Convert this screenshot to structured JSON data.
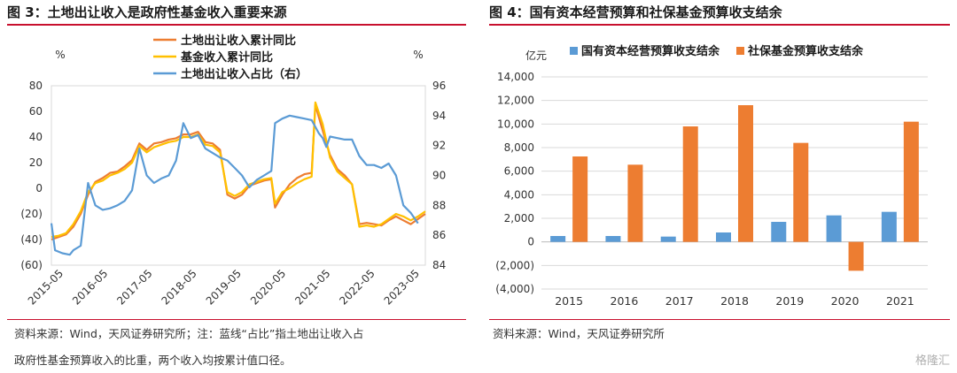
{
  "figures": [
    {
      "title": "图 3：土地出让收入是政府性基金收入重要来源",
      "source": [
        "资料来源：Wind，天风证券研究所；注：蓝线“占比”指土地出让收入占",
        "政府性基金预算收入的比重，两个收入均按累计值口径。"
      ]
    },
    {
      "title": "图 4：国有资本经营预算和社保基金预算收支结余",
      "source": [
        "资料来源：Wind，天风证券研究所"
      ]
    }
  ],
  "watermark": "格隆汇",
  "chart_data": [
    {
      "type": "line",
      "unit_left": "%",
      "unit_right": "%",
      "ylim": [
        -60,
        80
      ],
      "y2lim": [
        84,
        96
      ],
      "yticks": [
        "80",
        "60",
        "40",
        "20",
        "0",
        "(20)",
        "(40)",
        "(60)"
      ],
      "y2ticks": [
        "96",
        "94",
        "92",
        "90",
        "88",
        "86",
        "84"
      ],
      "x_ticks": [
        "2015-05",
        "2016-05",
        "2017-05",
        "2018-05",
        "2019-05",
        "2020-05",
        "2021-05",
        "2022-05",
        "2023-05"
      ],
      "legend": [
        "土地出让收入累计同比",
        "基金收入累计同比",
        "土地出让收入占比（右）"
      ],
      "colors": [
        "#ed7d31",
        "#ffc000",
        "#5b9bd5"
      ],
      "series": [
        {
          "name": "土地出让收入累计同比",
          "axis": "left",
          "points": [
            [
              0,
              -40
            ],
            [
              2,
              -38
            ],
            [
              4,
              -36
            ],
            [
              6,
              -30
            ],
            [
              8,
              -20
            ],
            [
              10,
              -5
            ],
            [
              12,
              5
            ],
            [
              14,
              8
            ],
            [
              16,
              12
            ],
            [
              18,
              13
            ],
            [
              20,
              17
            ],
            [
              22,
              22
            ],
            [
              24,
              35
            ],
            [
              26,
              30
            ],
            [
              28,
              35
            ],
            [
              30,
              36
            ],
            [
              32,
              38
            ],
            [
              34,
              39
            ],
            [
              36,
              42
            ],
            [
              38,
              42
            ],
            [
              40,
              44
            ],
            [
              42,
              36
            ],
            [
              44,
              35
            ],
            [
              46,
              30
            ],
            [
              48,
              -5
            ],
            [
              50,
              -8
            ],
            [
              52,
              -5
            ],
            [
              54,
              2
            ],
            [
              56,
              4
            ],
            [
              58,
              6
            ],
            [
              60,
              7
            ],
            [
              61,
              -15
            ],
            [
              63,
              -5
            ],
            [
              65,
              3
            ],
            [
              67,
              8
            ],
            [
              69,
              11
            ],
            [
              71,
              12
            ],
            [
              72,
              65
            ],
            [
              74,
              45
            ],
            [
              76,
              26
            ],
            [
              78,
              15
            ],
            [
              80,
              10
            ],
            [
              82,
              3
            ],
            [
              84,
              -28
            ],
            [
              86,
              -27
            ],
            [
              88,
              -28
            ],
            [
              90,
              -29
            ],
            [
              92,
              -25
            ],
            [
              94,
              -22
            ],
            [
              96,
              -25
            ],
            [
              98,
              -28
            ],
            [
              100,
              -24
            ],
            [
              102,
              -20
            ]
          ]
        },
        {
          "name": "基金收入累计同比",
          "axis": "left",
          "points": [
            [
              0,
              -38
            ],
            [
              2,
              -37
            ],
            [
              4,
              -35
            ],
            [
              6,
              -28
            ],
            [
              8,
              -18
            ],
            [
              10,
              -3
            ],
            [
              12,
              4
            ],
            [
              14,
              6
            ],
            [
              16,
              10
            ],
            [
              18,
              12
            ],
            [
              20,
              15
            ],
            [
              22,
              20
            ],
            [
              24,
              33
            ],
            [
              26,
              28
            ],
            [
              28,
              32
            ],
            [
              30,
              34
            ],
            [
              32,
              36
            ],
            [
              34,
              37
            ],
            [
              36,
              40
            ],
            [
              38,
              40
            ],
            [
              40,
              42
            ],
            [
              42,
              34
            ],
            [
              44,
              33
            ],
            [
              46,
              28
            ],
            [
              48,
              -3
            ],
            [
              50,
              -6
            ],
            [
              52,
              -3
            ],
            [
              54,
              3
            ],
            [
              56,
              5
            ],
            [
              58,
              7
            ],
            [
              60,
              8
            ],
            [
              61,
              -12
            ],
            [
              63,
              -3
            ],
            [
              65,
              0
            ],
            [
              67,
              4
            ],
            [
              69,
              7
            ],
            [
              71,
              9
            ],
            [
              72,
              67
            ],
            [
              74,
              50
            ],
            [
              76,
              24
            ],
            [
              78,
              13
            ],
            [
              80,
              8
            ],
            [
              82,
              3
            ],
            [
              84,
              -30
            ],
            [
              86,
              -29
            ],
            [
              88,
              -30
            ],
            [
              90,
              -28
            ],
            [
              92,
              -24
            ],
            [
              94,
              -20
            ],
            [
              96,
              -22
            ],
            [
              98,
              -25
            ],
            [
              100,
              -22
            ],
            [
              102,
              -18
            ]
          ]
        },
        {
          "name": "土地出让收入占比（右）",
          "axis": "right",
          "points": [
            [
              0,
              86.8
            ],
            [
              1,
              85.0
            ],
            [
              3,
              84.8
            ],
            [
              5,
              84.7
            ],
            [
              6,
              85.0
            ],
            [
              8,
              85.3
            ],
            [
              10,
              89.5
            ],
            [
              12,
              88.0
            ],
            [
              14,
              87.7
            ],
            [
              16,
              87.8
            ],
            [
              18,
              88.0
            ],
            [
              20,
              88.3
            ],
            [
              22,
              89.0
            ],
            [
              24,
              91.8
            ],
            [
              26,
              90.0
            ],
            [
              28,
              89.5
            ],
            [
              30,
              89.8
            ],
            [
              32,
              90.0
            ],
            [
              34,
              91.0
            ],
            [
              36,
              93.5
            ],
            [
              38,
              92.5
            ],
            [
              40,
              92.7
            ],
            [
              42,
              91.8
            ],
            [
              44,
              91.5
            ],
            [
              46,
              91.2
            ],
            [
              48,
              91.0
            ],
            [
              50,
              90.5
            ],
            [
              52,
              90.0
            ],
            [
              54,
              89.2
            ],
            [
              56,
              89.7
            ],
            [
              58,
              90.0
            ],
            [
              60,
              90.3
            ],
            [
              61,
              93.5
            ],
            [
              63,
              93.8
            ],
            [
              65,
              94.0
            ],
            [
              67,
              93.9
            ],
            [
              69,
              93.8
            ],
            [
              71,
              93.7
            ],
            [
              73,
              92.8
            ],
            [
              74,
              92.5
            ],
            [
              75,
              91.9
            ],
            [
              76,
              92.6
            ],
            [
              78,
              92.5
            ],
            [
              80,
              92.4
            ],
            [
              82,
              92.4
            ],
            [
              84,
              91.3
            ],
            [
              86,
              90.7
            ],
            [
              88,
              90.7
            ],
            [
              90,
              90.5
            ],
            [
              92,
              90.8
            ],
            [
              94,
              90.0
            ],
            [
              96,
              88.0
            ],
            [
              98,
              87.5
            ],
            [
              100,
              86.8
            ]
          ]
        }
      ],
      "x_max": 102
    },
    {
      "type": "bar",
      "unit": "亿元",
      "categories": [
        "2015",
        "2016",
        "2017",
        "2018",
        "2019",
        "2020",
        "2021"
      ],
      "ylim": [
        -4000,
        14000
      ],
      "yticks": [
        "14,000",
        "12,000",
        "10,000",
        "8,000",
        "6,000",
        "4,000",
        "2,000",
        "0",
        "(2,000)",
        "(4,000)"
      ],
      "legend": [
        "国有资本经营预算收支结余",
        "社保基金预算收支结余"
      ],
      "colors": [
        "#5b9bd5",
        "#ed7d31"
      ],
      "series": [
        {
          "name": "国有资本经营预算收支结余",
          "values": [
            500,
            500,
            450,
            800,
            1700,
            2250,
            2550
          ]
        },
        {
          "name": "社保基金预算收支结余",
          "values": [
            7250,
            6550,
            9800,
            11600,
            8400,
            -2450,
            10200
          ]
        }
      ]
    }
  ]
}
